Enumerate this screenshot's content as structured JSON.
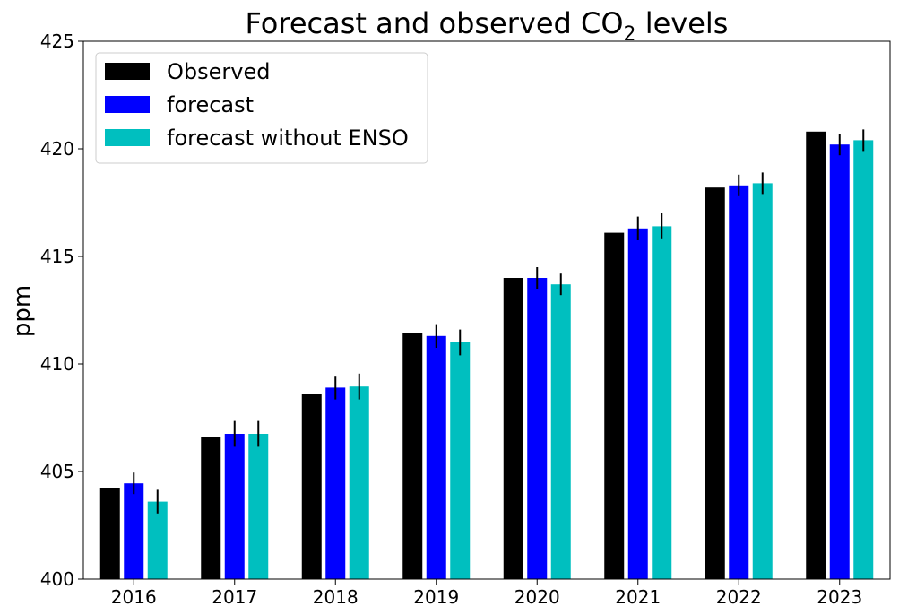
{
  "chart_data": {
    "type": "bar",
    "title": {
      "prefix": "Forecast and observed CO",
      "subscript": "2",
      "suffix": " levels"
    },
    "xlabel": "",
    "ylabel": "ppm",
    "ylim": [
      400,
      425
    ],
    "yticks": [
      400,
      405,
      410,
      415,
      420,
      425
    ],
    "categories": [
      "2016",
      "2017",
      "2018",
      "2019",
      "2020",
      "2021",
      "2022",
      "2023"
    ],
    "series": [
      {
        "name": "Observed",
        "color": "#000000",
        "values": [
          404.25,
          406.6,
          408.6,
          411.45,
          414.0,
          416.1,
          418.2,
          420.8
        ],
        "errors": null
      },
      {
        "name": "forecast",
        "color": "#0000ff",
        "values": [
          404.45,
          406.75,
          408.9,
          411.3,
          414.0,
          416.3,
          418.3,
          420.2
        ],
        "errors": [
          0.5,
          0.6,
          0.55,
          0.55,
          0.5,
          0.55,
          0.5,
          0.5
        ]
      },
      {
        "name": "forecast without ENSO",
        "color": "#00bfbf",
        "values": [
          403.6,
          406.75,
          408.95,
          411.0,
          413.7,
          416.4,
          418.4,
          420.4
        ],
        "errors": [
          0.55,
          0.6,
          0.6,
          0.6,
          0.5,
          0.6,
          0.5,
          0.5
        ]
      }
    ],
    "grid": false,
    "legend_position": "top-left"
  }
}
